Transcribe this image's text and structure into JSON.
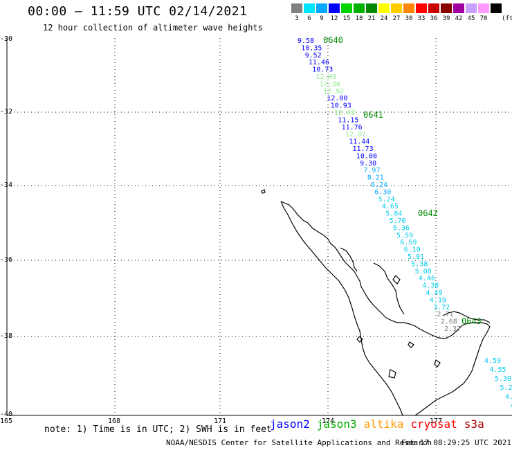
{
  "header": {
    "title": "00:00 – 11:59 UTC 02/14/2021",
    "subtitle": "12 hour collection of altimeter wave heights"
  },
  "color_scale": {
    "unit_label": "(ft)",
    "bins": [
      {
        "label": "3",
        "color": "#808080"
      },
      {
        "label": "6",
        "color": "#00e5ff"
      },
      {
        "label": "9",
        "color": "#00a8ff"
      },
      {
        "label": "12",
        "color": "#0000ff"
      },
      {
        "label": "15",
        "color": "#00d400"
      },
      {
        "label": "18",
        "color": "#00b000"
      },
      {
        "label": "21",
        "color": "#008800"
      },
      {
        "label": "24",
        "color": "#ffff00"
      },
      {
        "label": "27",
        "color": "#ffcc00"
      },
      {
        "label": "30",
        "color": "#ff8800"
      },
      {
        "label": "33",
        "color": "#ff0000"
      },
      {
        "label": "36",
        "color": "#c80000"
      },
      {
        "label": "39",
        "color": "#880000"
      },
      {
        "label": "42",
        "color": "#a000a0"
      },
      {
        "label": "45",
        "color": "#c8a0ff"
      },
      {
        "label": "70",
        "color": "#ff99ff"
      },
      {
        "label": "",
        "color": "#000000"
      }
    ]
  },
  "axes": {
    "lat_labels": [
      "-30",
      "-32",
      "-34",
      "-36",
      "-38",
      "-40"
    ],
    "lon_labels": [
      "165",
      "168",
      "171",
      "174",
      "177"
    ]
  },
  "track": {
    "times": [
      "0640",
      "0641",
      "0642",
      "0643"
    ],
    "time_color": "#008800",
    "points": [
      {
        "v": "9.58",
        "c": "#0000ff"
      },
      {
        "v": "10.35",
        "c": "#0000ff"
      },
      {
        "v": "9.52",
        "c": "#0000ff"
      },
      {
        "v": "11.46",
        "c": "#0000ff"
      },
      {
        "v": "10.73",
        "c": "#0000ff"
      },
      {
        "v": "12.09",
        "c": "#90ee90"
      },
      {
        "v": "12.36",
        "c": "#90ee90"
      },
      {
        "v": "12.92",
        "c": "#90ee90"
      },
      {
        "v": "12.00",
        "c": "#0000ff"
      },
      {
        "v": "10.93",
        "c": "#0000ff"
      },
      {
        "v": "12.48",
        "c": "#90ee90"
      },
      {
        "v": "11.15",
        "c": "#0000ff"
      },
      {
        "v": "11.76",
        "c": "#0000ff"
      },
      {
        "v": "12.07",
        "c": "#90ee90"
      },
      {
        "v": "11.44",
        "c": "#0000ff"
      },
      {
        "v": "11.73",
        "c": "#0000ff"
      },
      {
        "v": "10.00",
        "c": "#0000ff"
      },
      {
        "v": "9.30",
        "c": "#0000ff"
      },
      {
        "v": "7.97",
        "c": "#00a8ff"
      },
      {
        "v": "8.21",
        "c": "#00a8ff"
      },
      {
        "v": "6.24",
        "c": "#00a8ff"
      },
      {
        "v": "6.30",
        "c": "#00a8ff"
      },
      {
        "v": "5.24",
        "c": "#00ccee"
      },
      {
        "v": "4.65",
        "c": "#00ccee"
      },
      {
        "v": "5.84",
        "c": "#00ccee"
      },
      {
        "v": "5.70",
        "c": "#00ccee"
      },
      {
        "v": "5.36",
        "c": "#00ccee"
      },
      {
        "v": "5.59",
        "c": "#00ccee"
      },
      {
        "v": "6.59",
        "c": "#00ccee"
      },
      {
        "v": "6.10",
        "c": "#00ccee"
      },
      {
        "v": "5.91",
        "c": "#00ccee"
      },
      {
        "v": "5.38",
        "c": "#00ccee"
      },
      {
        "v": "5.08",
        "c": "#00ccee"
      },
      {
        "v": "4.46",
        "c": "#00ccee"
      },
      {
        "v": "4.38",
        "c": "#00ccee"
      },
      {
        "v": "4.49",
        "c": "#00ccee"
      },
      {
        "v": "4.19",
        "c": "#00ccee"
      },
      {
        "v": "3.72",
        "c": "#00ccee"
      },
      {
        "v": "2.71",
        "c": "#808080"
      },
      {
        "v": "2.68",
        "c": "#808080"
      },
      {
        "v": "2.37",
        "c": "#808080"
      }
    ],
    "points2": [
      {
        "v": "4.59",
        "c": "#00ccee"
      },
      {
        "v": "4.55",
        "c": "#00ccee"
      },
      {
        "v": "5.30",
        "c": "#00ccee"
      },
      {
        "v": "5.29",
        "c": "#00ccee"
      },
      {
        "v": "4.61",
        "c": "#00ccee"
      },
      {
        "v": "4.1",
        "c": "#00ccee"
      }
    ]
  },
  "note": "note: 1) Time is in UTC; 2) SWH is in feet",
  "satellites": [
    {
      "name": "jason2",
      "color": "#0000ff"
    },
    {
      "name": "jason3",
      "color": "#00aa00"
    },
    {
      "name": "altika",
      "color": "#ff9900"
    },
    {
      "name": "cryosat",
      "color": "#ff0000"
    },
    {
      "name": "s3a",
      "color": "#aa0000"
    }
  ],
  "footer": {
    "left": "NOAA/NESDIS Center for Satellite Applications and Research",
    "right": "Feb 17 08:29:25 UTC 2021"
  }
}
